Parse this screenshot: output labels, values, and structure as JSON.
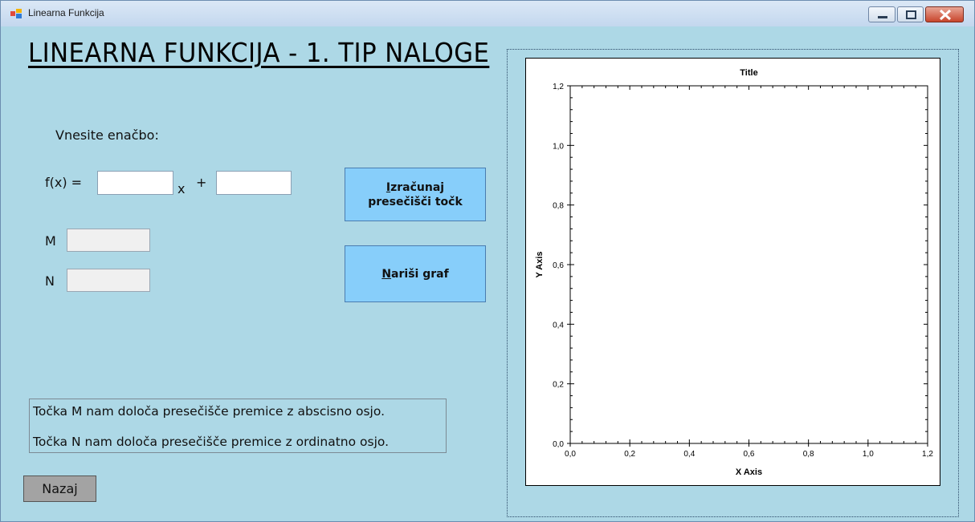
{
  "window": {
    "title": "Linearna Funkcija"
  },
  "form": {
    "heading": "LINEARNA FUNKCIJA - 1. TIP NALOGE",
    "prompt": "Vnesite enačbo:",
    "fx_label": "f(x) =",
    "x_label": "x",
    "plus_label": "+",
    "slope_value": "",
    "intercept_value": "",
    "m_label": "M",
    "m_value": "",
    "n_label": "N",
    "n_value": "",
    "compute_button": {
      "mnemonic": "I",
      "rest_line1": "zračunaj",
      "line2": "presečišči točk"
    },
    "draw_button": {
      "mnemonic": "N",
      "rest": "ariši graf"
    },
    "info_line1": "Točka M nam določa presečišče premice z abscisno osjo.",
    "info_line2": "Točka N nam določa presečišče premice z ordinatno osjo.",
    "back_button": "Nazaj"
  },
  "chart_data": {
    "type": "line",
    "title": "Title",
    "xlabel": "X Axis",
    "ylabel": "Y Axis",
    "xlim": [
      0,
      1.2
    ],
    "ylim": [
      0,
      1.2
    ],
    "xticks": [
      "0,0",
      "0,2",
      "0,4",
      "0,6",
      "0,8",
      "1,0",
      "1,2"
    ],
    "yticks": [
      "0,0",
      "0,2",
      "0,4",
      "0,6",
      "0,8",
      "1,0",
      "1,2"
    ],
    "series": [],
    "grid": false
  },
  "colors": {
    "background": "#add8e6",
    "button": "#87cefa",
    "back_button": "#a3a3a3"
  }
}
